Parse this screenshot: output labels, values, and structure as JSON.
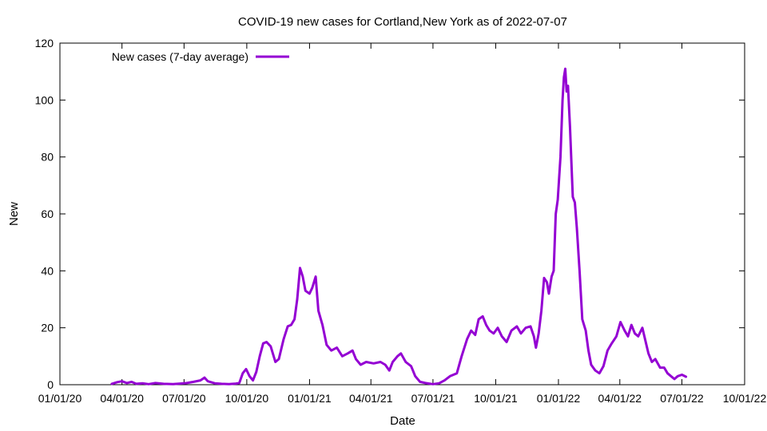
{
  "chart_data": {
    "type": "line",
    "title": "COVID-19 new cases for Cortland,New York as of 2022-07-07",
    "xlabel": "Date",
    "ylabel": "New",
    "xlim": [
      "2020-01-01",
      "2022-10-01"
    ],
    "ylim": [
      0,
      120
    ],
    "grid": false,
    "legend_position": "top-left",
    "xticks": [
      {
        "date": "2020-01-01",
        "label": "01/01/20"
      },
      {
        "date": "2020-04-01",
        "label": "04/01/20"
      },
      {
        "date": "2020-07-01",
        "label": "07/01/20"
      },
      {
        "date": "2020-10-01",
        "label": "10/01/20"
      },
      {
        "date": "2021-01-01",
        "label": "01/01/21"
      },
      {
        "date": "2021-04-01",
        "label": "04/01/21"
      },
      {
        "date": "2021-07-01",
        "label": "07/01/21"
      },
      {
        "date": "2021-10-01",
        "label": "10/01/21"
      },
      {
        "date": "2022-01-01",
        "label": "01/01/22"
      },
      {
        "date": "2022-04-01",
        "label": "04/01/22"
      },
      {
        "date": "2022-07-01",
        "label": "07/01/22"
      },
      {
        "date": "2022-10-01",
        "label": "10/01/22"
      }
    ],
    "yticks": [
      0,
      20,
      40,
      60,
      80,
      100,
      120
    ],
    "series": [
      {
        "name": "New cases (7-day average)",
        "color": "#9400d3",
        "points": [
          [
            "2020-03-17",
            0.3
          ],
          [
            "2020-03-25",
            0.9
          ],
          [
            "2020-04-01",
            1.2
          ],
          [
            "2020-04-08",
            0.6
          ],
          [
            "2020-04-15",
            1.0
          ],
          [
            "2020-04-22",
            0.3
          ],
          [
            "2020-05-01",
            0.5
          ],
          [
            "2020-05-10",
            0.2
          ],
          [
            "2020-05-20",
            0.6
          ],
          [
            "2020-06-01",
            0.3
          ],
          [
            "2020-06-15",
            0.2
          ],
          [
            "2020-06-25",
            0.4
          ],
          [
            "2020-07-05",
            0.6
          ],
          [
            "2020-07-15",
            1.0
          ],
          [
            "2020-07-25",
            1.5
          ],
          [
            "2020-07-31",
            2.5
          ],
          [
            "2020-08-05",
            1.2
          ],
          [
            "2020-08-15",
            0.5
          ],
          [
            "2020-08-25",
            0.3
          ],
          [
            "2020-09-05",
            0.2
          ],
          [
            "2020-09-15",
            0.4
          ],
          [
            "2020-09-20",
            0.6
          ],
          [
            "2020-09-25",
            4.0
          ],
          [
            "2020-09-30",
            5.5
          ],
          [
            "2020-10-05",
            3.0
          ],
          [
            "2020-10-10",
            1.5
          ],
          [
            "2020-10-15",
            4.5
          ],
          [
            "2020-10-20",
            10.0
          ],
          [
            "2020-10-25",
            14.5
          ],
          [
            "2020-10-30",
            15.0
          ],
          [
            "2020-11-05",
            13.5
          ],
          [
            "2020-11-12",
            8.0
          ],
          [
            "2020-11-17",
            9.0
          ],
          [
            "2020-11-24",
            16.0
          ],
          [
            "2020-11-30",
            20.5
          ],
          [
            "2020-12-05",
            21.0
          ],
          [
            "2020-12-10",
            23.0
          ],
          [
            "2020-12-14",
            30.0
          ],
          [
            "2020-12-18",
            41.0
          ],
          [
            "2020-12-22",
            38.0
          ],
          [
            "2020-12-26",
            33.0
          ],
          [
            "2021-01-01",
            32.0
          ],
          [
            "2021-01-05",
            34.0
          ],
          [
            "2021-01-10",
            38.0
          ],
          [
            "2021-01-14",
            26.0
          ],
          [
            "2021-01-20",
            21.0
          ],
          [
            "2021-01-26",
            14.0
          ],
          [
            "2021-02-02",
            12.0
          ],
          [
            "2021-02-10",
            13.0
          ],
          [
            "2021-02-18",
            10.0
          ],
          [
            "2021-02-26",
            11.0
          ],
          [
            "2021-03-05",
            12.0
          ],
          [
            "2021-03-10",
            9.0
          ],
          [
            "2021-03-17",
            7.0
          ],
          [
            "2021-03-25",
            8.0
          ],
          [
            "2021-04-05",
            7.5
          ],
          [
            "2021-04-15",
            8.0
          ],
          [
            "2021-04-22",
            7.0
          ],
          [
            "2021-04-28",
            5.0
          ],
          [
            "2021-05-03",
            8.0
          ],
          [
            "2021-05-10",
            10.0
          ],
          [
            "2021-05-15",
            11.0
          ],
          [
            "2021-05-22",
            8.0
          ],
          [
            "2021-05-30",
            6.5
          ],
          [
            "2021-06-05",
            3.0
          ],
          [
            "2021-06-12",
            1.0
          ],
          [
            "2021-06-20",
            0.6
          ],
          [
            "2021-07-01",
            0.2
          ],
          [
            "2021-07-10",
            0.5
          ],
          [
            "2021-07-18",
            1.5
          ],
          [
            "2021-07-26",
            3.0
          ],
          [
            "2021-08-05",
            4.0
          ],
          [
            "2021-08-12",
            10.0
          ],
          [
            "2021-08-20",
            16.0
          ],
          [
            "2021-08-26",
            19.0
          ],
          [
            "2021-09-01",
            17.5
          ],
          [
            "2021-09-06",
            23.0
          ],
          [
            "2021-09-12",
            24.0
          ],
          [
            "2021-09-17",
            21.0
          ],
          [
            "2021-09-22",
            19.0
          ],
          [
            "2021-09-28",
            18.0
          ],
          [
            "2021-10-04",
            20.0
          ],
          [
            "2021-10-10",
            17.0
          ],
          [
            "2021-10-17",
            15.0
          ],
          [
            "2021-10-24",
            19.0
          ],
          [
            "2021-11-01",
            20.5
          ],
          [
            "2021-11-07",
            18.0
          ],
          [
            "2021-11-14",
            20.0
          ],
          [
            "2021-11-21",
            20.5
          ],
          [
            "2021-11-26",
            17.0
          ],
          [
            "2021-11-29",
            13.0
          ],
          [
            "2021-12-03",
            18.0
          ],
          [
            "2021-12-07",
            26.0
          ],
          [
            "2021-12-11",
            37.5
          ],
          [
            "2021-12-15",
            36.0
          ],
          [
            "2021-12-18",
            32.0
          ],
          [
            "2021-12-22",
            38.0
          ],
          [
            "2021-12-25",
            40.0
          ],
          [
            "2021-12-28",
            60.0
          ],
          [
            "2021-12-31",
            65.0
          ],
          [
            "2022-01-04",
            80.0
          ],
          [
            "2022-01-07",
            100.0
          ],
          [
            "2022-01-09",
            108.0
          ],
          [
            "2022-01-11",
            111.0
          ],
          [
            "2022-01-13",
            103.0
          ],
          [
            "2022-01-15",
            105.0
          ],
          [
            "2022-01-18",
            90.0
          ],
          [
            "2022-01-22",
            66.0
          ],
          [
            "2022-01-25",
            64.0
          ],
          [
            "2022-01-28",
            55.0
          ],
          [
            "2022-02-01",
            40.0
          ],
          [
            "2022-02-05",
            23.0
          ],
          [
            "2022-02-10",
            19.0
          ],
          [
            "2022-02-14",
            12.0
          ],
          [
            "2022-02-18",
            7.0
          ],
          [
            "2022-02-24",
            5.0
          ],
          [
            "2022-03-02",
            4.0
          ],
          [
            "2022-03-08",
            6.5
          ],
          [
            "2022-03-14",
            12.0
          ],
          [
            "2022-03-20",
            14.5
          ],
          [
            "2022-03-27",
            17.0
          ],
          [
            "2022-04-02",
            22.0
          ],
          [
            "2022-04-08",
            19.0
          ],
          [
            "2022-04-13",
            17.0
          ],
          [
            "2022-04-18",
            21.0
          ],
          [
            "2022-04-23",
            18.0
          ],
          [
            "2022-04-28",
            17.0
          ],
          [
            "2022-05-04",
            20.0
          ],
          [
            "2022-05-09",
            15.0
          ],
          [
            "2022-05-13",
            11.0
          ],
          [
            "2022-05-18",
            8.0
          ],
          [
            "2022-05-23",
            9.0
          ],
          [
            "2022-05-30",
            6.0
          ],
          [
            "2022-06-05",
            6.0
          ],
          [
            "2022-06-10",
            4.0
          ],
          [
            "2022-06-15",
            3.0
          ],
          [
            "2022-06-20",
            2.0
          ],
          [
            "2022-06-25",
            3.0
          ],
          [
            "2022-07-01",
            3.5
          ],
          [
            "2022-07-07",
            2.8
          ]
        ]
      }
    ]
  }
}
